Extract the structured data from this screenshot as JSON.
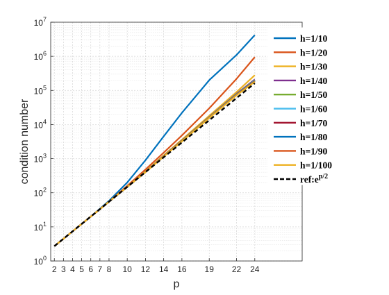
{
  "chart_data": {
    "type": "line",
    "xlabel": "p",
    "ylabel": "condition number",
    "y_scale": "log",
    "xlim": [
      1.6,
      29.2
    ],
    "ylim": [
      1,
      10000000
    ],
    "x_ticks": [
      2,
      3,
      4,
      5,
      6,
      7,
      8,
      10,
      12,
      14,
      16,
      19,
      22,
      24
    ],
    "y_ticks": [
      {
        "base": "10",
        "exp": "0",
        "value": 1
      },
      {
        "base": "10",
        "exp": "1",
        "value": 10
      },
      {
        "base": "10",
        "exp": "2",
        "value": 100
      },
      {
        "base": "10",
        "exp": "3",
        "value": 1000
      },
      {
        "base": "10",
        "exp": "4",
        "value": 10000
      },
      {
        "base": "10",
        "exp": "5",
        "value": 100000
      },
      {
        "base": "10",
        "exp": "6",
        "value": 1000000
      },
      {
        "base": "10",
        "exp": "7",
        "value": 10000000
      }
    ],
    "grid": true,
    "minor_grid": true,
    "legend_position": "top-right",
    "x": [
      2,
      3,
      4,
      5,
      6,
      7,
      8,
      10,
      12,
      14,
      16,
      19,
      22,
      24
    ],
    "series": [
      {
        "name": "h=1/10",
        "color": "#0072BD",
        "dash": false,
        "values": [
          2.72,
          4.48,
          7.39,
          12.2,
          20.1,
          34,
          58,
          200,
          900,
          4500,
          22000,
          200000,
          1100000,
          4200000
        ]
      },
      {
        "name": "h=1/20",
        "color": "#D95319",
        "dash": false,
        "values": [
          2.72,
          4.48,
          7.39,
          12.2,
          20.1,
          33,
          55,
          160,
          480,
          1500,
          4800,
          30000,
          220000,
          950000
        ]
      },
      {
        "name": "h=1/30",
        "color": "#EDB120",
        "dash": false,
        "values": [
          2.72,
          4.48,
          7.39,
          12.2,
          20.1,
          33,
          55,
          150,
          420,
          1250,
          3600,
          18000,
          90000,
          280000
        ]
      },
      {
        "name": "h=1/40",
        "color": "#7E2F8E",
        "dash": false,
        "values": [
          2.72,
          4.48,
          7.39,
          12.2,
          20.1,
          33,
          55,
          148,
          410,
          1200,
          3400,
          16500,
          80000,
          210000
        ]
      },
      {
        "name": "h=1/50",
        "color": "#77AC30",
        "dash": false,
        "values": [
          2.72,
          4.48,
          7.39,
          12.2,
          20.1,
          33,
          55,
          148,
          408,
          1190,
          3350,
          16200,
          78000,
          200000
        ]
      },
      {
        "name": "h=1/60",
        "color": "#4DBEEE",
        "dash": false,
        "values": [
          2.72,
          4.48,
          7.39,
          12.2,
          20.1,
          33,
          55,
          148,
          406,
          1180,
          3300,
          16000,
          76000,
          195000
        ]
      },
      {
        "name": "h=1/70",
        "color": "#A2142F",
        "dash": false,
        "values": [
          2.72,
          4.48,
          7.39,
          12.2,
          20.1,
          33,
          55,
          148,
          405,
          1175,
          3280,
          15900,
          75000,
          190000
        ]
      },
      {
        "name": "h=1/80",
        "color": "#0072BD",
        "dash": false,
        "values": [
          2.72,
          4.48,
          7.39,
          12.2,
          20.1,
          33,
          55,
          148,
          404,
          1170,
          3260,
          15800,
          74000,
          186000
        ]
      },
      {
        "name": "h=1/90",
        "color": "#D95319",
        "dash": false,
        "values": [
          2.72,
          4.48,
          7.39,
          12.2,
          20.1,
          33,
          55,
          148,
          403,
          1165,
          3240,
          15700,
          73000,
          183000
        ]
      },
      {
        "name": "h=1/100",
        "color": "#EDB120",
        "dash": false,
        "values": [
          2.72,
          4.48,
          7.39,
          12.2,
          20.1,
          33,
          55,
          148,
          402,
          1160,
          3220,
          15600,
          72000,
          180000
        ]
      },
      {
        "name": "ref:e",
        "name_sup": "p/2",
        "color": "#000000",
        "dash": true,
        "values": [
          2.72,
          4.48,
          7.39,
          12.2,
          20.1,
          33.1,
          54.6,
          148.4,
          403.4,
          1096.6,
          2981,
          13360,
          59874,
          162755
        ]
      }
    ]
  }
}
